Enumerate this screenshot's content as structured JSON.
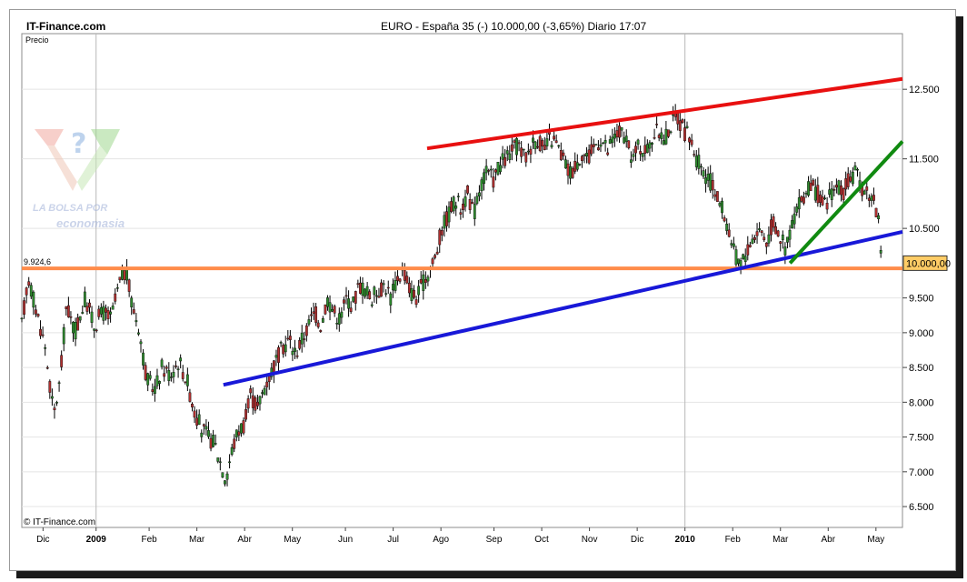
{
  "header": {
    "brand": "IT-Finance.com",
    "title": "EURO - España 35 (-)   10.000,00 (-3,65%)   Diario  17:07"
  },
  "watermark": {
    "line1": "LA BOLSA POR",
    "line2": "economasia",
    "icon": "question-mark-arrows-logo"
  },
  "copyright": "© IT-Finance.com",
  "chart_data": {
    "type": "candlestick",
    "ylabel": "Precio",
    "ylim": [
      6200,
      13300
    ],
    "yticks": [
      "6.500",
      "7.000",
      "7.500",
      "8.000",
      "8.500",
      "9.000",
      "9.500",
      "10.500",
      "11.500",
      "12.500"
    ],
    "ytick_values": [
      6500,
      7000,
      7500,
      8000,
      8500,
      9000,
      9500,
      10500,
      11500,
      12500
    ],
    "x_months": [
      {
        "label": "Dic",
        "t": 2,
        "bold": false
      },
      {
        "label": "2009",
        "t": 7,
        "bold": true
      },
      {
        "label": "Feb",
        "t": 12,
        "bold": false
      },
      {
        "label": "Mar",
        "t": 16.5,
        "bold": false
      },
      {
        "label": "Abr",
        "t": 21,
        "bold": false
      },
      {
        "label": "May",
        "t": 25.5,
        "bold": false
      },
      {
        "label": "Jun",
        "t": 30.5,
        "bold": false
      },
      {
        "label": "Jul",
        "t": 35,
        "bold": false
      },
      {
        "label": "Ago",
        "t": 39.5,
        "bold": false
      },
      {
        "label": "Sep",
        "t": 44.5,
        "bold": false
      },
      {
        "label": "Oct",
        "t": 49,
        "bold": false
      },
      {
        "label": "Nov",
        "t": 53.5,
        "bold": false
      },
      {
        "label": "Dic",
        "t": 58,
        "bold": false
      },
      {
        "label": "2010",
        "t": 62.5,
        "bold": true
      },
      {
        "label": "Feb",
        "t": 67,
        "bold": false
      },
      {
        "label": "Mar",
        "t": 71.5,
        "bold": false
      },
      {
        "label": "Abr",
        "t": 76,
        "bold": false
      },
      {
        "label": "May",
        "t": 80.5,
        "bold": false
      }
    ],
    "xlim": [
      0,
      83
    ],
    "year_gridlines": [
      7,
      62.5
    ],
    "price_path": [
      [
        0,
        9100
      ],
      [
        0.6,
        9800
      ],
      [
        1.4,
        9300
      ],
      [
        2.2,
        8800
      ],
      [
        3.0,
        7800
      ],
      [
        3.6,
        8300
      ],
      [
        4.2,
        9400
      ],
      [
        5.0,
        9000
      ],
      [
        6.0,
        9500
      ],
      [
        6.8,
        9100
      ],
      [
        7.6,
        9300
      ],
      [
        8.4,
        9200
      ],
      [
        9.2,
        9700
      ],
      [
        9.8,
        9900
      ],
      [
        10.4,
        9400
      ],
      [
        11.0,
        9100
      ],
      [
        11.8,
        8300
      ],
      [
        12.6,
        8200
      ],
      [
        13.2,
        8500
      ],
      [
        14.0,
        8400
      ],
      [
        14.8,
        8600
      ],
      [
        15.6,
        8300
      ],
      [
        16.2,
        7900
      ],
      [
        17.0,
        7600
      ],
      [
        17.6,
        7500
      ],
      [
        18.2,
        7400
      ],
      [
        18.8,
        7100
      ],
      [
        19.2,
        6900
      ],
      [
        19.8,
        7300
      ],
      [
        20.4,
        7600
      ],
      [
        21.0,
        7700
      ],
      [
        21.6,
        8100
      ],
      [
        22.2,
        7900
      ],
      [
        22.8,
        8200
      ],
      [
        23.4,
        8400
      ],
      [
        24.0,
        8600
      ],
      [
        24.6,
        8800
      ],
      [
        25.2,
        8900
      ],
      [
        25.8,
        8700
      ],
      [
        26.4,
        8900
      ],
      [
        27.0,
        9100
      ],
      [
        27.6,
        9300
      ],
      [
        28.2,
        9100
      ],
      [
        28.8,
        9500
      ],
      [
        29.4,
        9300
      ],
      [
        30.0,
        9200
      ],
      [
        30.6,
        9500
      ],
      [
        31.2,
        9400
      ],
      [
        31.8,
        9700
      ],
      [
        32.4,
        9600
      ],
      [
        33.0,
        9500
      ],
      [
        33.6,
        9600
      ],
      [
        34.2,
        9700
      ],
      [
        34.8,
        9500
      ],
      [
        35.4,
        9800
      ],
      [
        36.0,
        9900
      ],
      [
        36.6,
        9600
      ],
      [
        37.2,
        9500
      ],
      [
        37.8,
        9700
      ],
      [
        38.4,
        9900
      ],
      [
        39.0,
        10100
      ],
      [
        39.6,
        10500
      ],
      [
        40.2,
        10700
      ],
      [
        40.8,
        10900
      ],
      [
        41.4,
        10800
      ],
      [
        42.0,
        11000
      ],
      [
        42.6,
        10700
      ],
      [
        43.2,
        11100
      ],
      [
        43.8,
        11300
      ],
      [
        44.4,
        11200
      ],
      [
        45.0,
        11400
      ],
      [
        45.6,
        11500
      ],
      [
        46.2,
        11600
      ],
      [
        46.8,
        11700
      ],
      [
        47.4,
        11500
      ],
      [
        48.0,
        11700
      ],
      [
        48.6,
        11800
      ],
      [
        49.2,
        11600
      ],
      [
        49.8,
        11800
      ],
      [
        50.4,
        11700
      ],
      [
        51.0,
        11500
      ],
      [
        51.6,
        11300
      ],
      [
        52.2,
        11400
      ],
      [
        52.8,
        11600
      ],
      [
        53.4,
        11500
      ],
      [
        54.0,
        11700
      ],
      [
        54.6,
        11800
      ],
      [
        55.2,
        11600
      ],
      [
        55.8,
        11800
      ],
      [
        56.4,
        11900
      ],
      [
        57.0,
        11700
      ],
      [
        57.6,
        11500
      ],
      [
        58.2,
        11700
      ],
      [
        58.8,
        11600
      ],
      [
        59.4,
        11800
      ],
      [
        60.0,
        11900
      ],
      [
        60.6,
        11800
      ],
      [
        61.2,
        12000
      ],
      [
        61.8,
        12100
      ],
      [
        62.4,
        11900
      ],
      [
        63.0,
        11800
      ],
      [
        63.6,
        11500
      ],
      [
        64.2,
        11300
      ],
      [
        64.8,
        11200
      ],
      [
        65.4,
        11000
      ],
      [
        66.0,
        10800
      ],
      [
        66.6,
        10500
      ],
      [
        67.2,
        10100
      ],
      [
        67.8,
        10000
      ],
      [
        68.4,
        10200
      ],
      [
        69.0,
        10400
      ],
      [
        69.6,
        10500
      ],
      [
        70.2,
        10300
      ],
      [
        70.8,
        10600
      ],
      [
        71.4,
        10400
      ],
      [
        72.0,
        10200
      ],
      [
        72.6,
        10600
      ],
      [
        73.2,
        10800
      ],
      [
        73.8,
        11000
      ],
      [
        74.4,
        11100
      ],
      [
        75.0,
        11000
      ],
      [
        75.6,
        10800
      ],
      [
        76.2,
        11000
      ],
      [
        76.8,
        11100
      ],
      [
        77.4,
        11000
      ],
      [
        78.0,
        11200
      ],
      [
        78.6,
        11300
      ],
      [
        79.2,
        11100
      ],
      [
        79.8,
        11000
      ],
      [
        80.4,
        10900
      ],
      [
        80.8,
        10500
      ],
      [
        81.0,
        10000
      ]
    ],
    "trendlines": [
      {
        "color": "#e81010",
        "from": [
          38.2,
          11650
        ],
        "to": [
          83,
          12650
        ]
      },
      {
        "color": "#1818d8",
        "from": [
          19.0,
          8250
        ],
        "to": [
          83,
          10450
        ]
      },
      {
        "color": "#108a10",
        "from": [
          72.4,
          10000
        ],
        "to": [
          83,
          11750
        ]
      }
    ],
    "horizontal_line": {
      "color": "#ff8c4a",
      "value": 9924.6
    },
    "level_label": "9.924,6",
    "last_price": {
      "value": 10000,
      "label": "10.000,00"
    }
  }
}
